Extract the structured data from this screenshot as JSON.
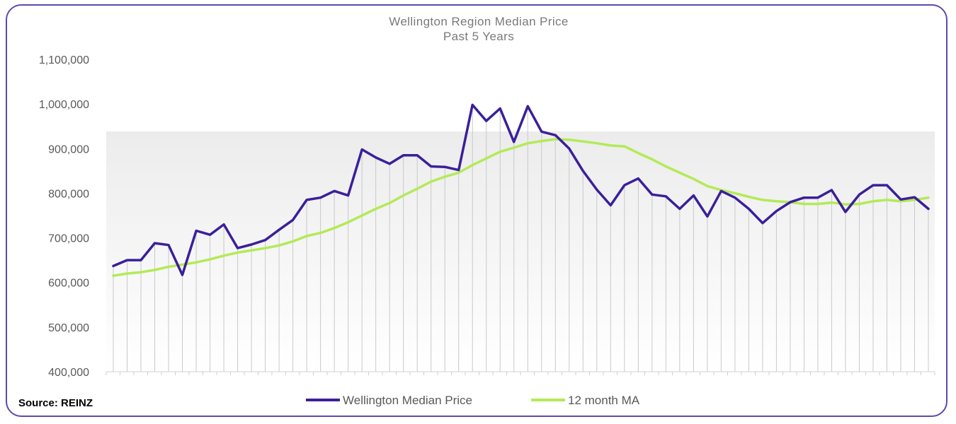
{
  "chart_data": {
    "type": "line",
    "title": "Wellington Region Median Price",
    "subtitle": "Past 5 Years",
    "source": "Source: REINZ",
    "ylim": [
      400000,
      1100000
    ],
    "yticks": [
      "400,000",
      "500,000",
      "600,000",
      "700,000",
      "800,000",
      "900,000",
      "1,000,000",
      "1,100,000"
    ],
    "ytick_values": [
      400000,
      500000,
      600000,
      700000,
      800000,
      900000,
      1000000,
      1100000
    ],
    "legend_position": "bottom",
    "grid": "vertical",
    "series": [
      {
        "name": "Wellington Median Price",
        "color": "#3b1f9a",
        "values": [
          637000,
          650000,
          650000,
          688000,
          684000,
          617000,
          716000,
          707000,
          730000,
          677000,
          685000,
          695000,
          718000,
          740000,
          785000,
          790000,
          805000,
          795000,
          898000,
          880000,
          866000,
          885000,
          885000,
          860000,
          859000,
          852000,
          998000,
          962000,
          990000,
          915000,
          995000,
          938000,
          930000,
          900000,
          850000,
          808000,
          773000,
          818000,
          833000,
          797000,
          793000,
          765000,
          795000,
          748000,
          805000,
          790000,
          765000,
          733000,
          760000,
          780000,
          790000,
          790000,
          807000,
          758000,
          797000,
          818000,
          818000,
          786000,
          791000,
          765000
        ]
      },
      {
        "name": "12 month MA",
        "color": "#b3ea58",
        "values": [
          615000,
          620000,
          623000,
          628000,
          635000,
          640000,
          645000,
          652000,
          660000,
          667000,
          672000,
          677000,
          683000,
          692000,
          704000,
          711000,
          722000,
          735000,
          750000,
          765000,
          778000,
          795000,
          810000,
          826000,
          837000,
          846000,
          863000,
          878000,
          893000,
          902000,
          912000,
          917000,
          921000,
          920000,
          916000,
          912000,
          907000,
          905000,
          890000,
          876000,
          860000,
          846000,
          832000,
          816000,
          807000,
          800000,
          792000,
          785000,
          782000,
          780000,
          776000,
          776000,
          779000,
          775000,
          776000,
          782000,
          785000,
          782000,
          785000,
          790000
        ]
      }
    ]
  }
}
